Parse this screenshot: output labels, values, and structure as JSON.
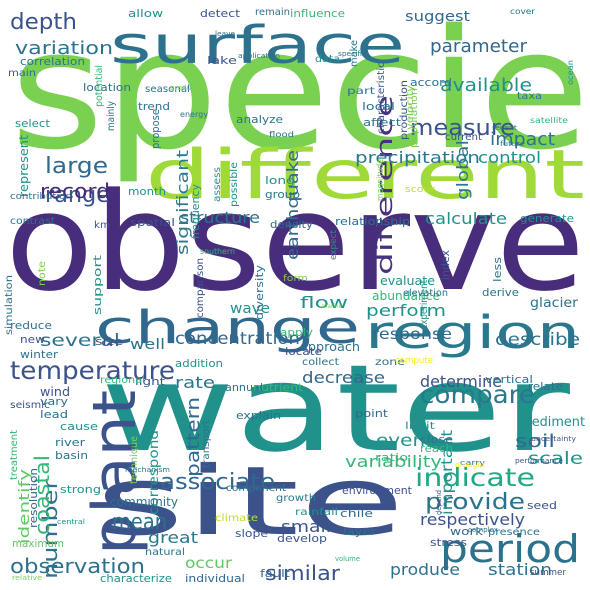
{
  "words": [
    {
      "text": "specie",
      "color": "#7ad151"
    },
    {
      "text": "observe",
      "color": "#472d7b"
    },
    {
      "text": "water",
      "color": "#21918c"
    },
    {
      "text": "site",
      "color": "#3b528b"
    },
    {
      "text": "different",
      "color": "#a0da39"
    },
    {
      "text": "surface",
      "color": "#2c728e"
    },
    {
      "text": "change",
      "color": "#31688e"
    },
    {
      "text": "region",
      "color": "#2a788e"
    },
    {
      "text": "plant",
      "color": "#3b528b"
    },
    {
      "text": "period",
      "color": "#2c728e"
    },
    {
      "text": "temperature",
      "color": "#3b528b"
    },
    {
      "text": "indicate",
      "color": "#22a884"
    },
    {
      "text": "compare",
      "color": "#2a788e"
    },
    {
      "text": "difference",
      "color": "#46327e"
    },
    {
      "text": "measure",
      "color": "#3b528b"
    },
    {
      "text": "associate",
      "color": "#31688e"
    },
    {
      "text": "provide",
      "color": "#2c728e"
    },
    {
      "text": "observation",
      "color": "#2c728e"
    },
    {
      "text": "large",
      "color": "#31688e"
    },
    {
      "text": "number",
      "color": "#2c728e"
    },
    {
      "text": "range",
      "color": "#3b528b"
    },
    {
      "text": "depth",
      "color": "#3b528b"
    },
    {
      "text": "parameter",
      "color": "#31688e"
    },
    {
      "text": "pattern",
      "color": "#31688e"
    },
    {
      "text": "precipitation",
      "color": "#2a788e"
    },
    {
      "text": "concentration",
      "color": "#31688e"
    },
    {
      "text": "mean",
      "color": "#2c728e"
    },
    {
      "text": "similar",
      "color": "#3b528b"
    },
    {
      "text": "significant",
      "color": "#2a788e"
    },
    {
      "text": "soil",
      "color": "#31688e"
    },
    {
      "text": "structure",
      "color": "#2c728e"
    },
    {
      "text": "calculate",
      "color": "#21918c"
    },
    {
      "text": "scale",
      "color": "#21918c"
    },
    {
      "text": "variation",
      "color": "#2c728e"
    },
    {
      "text": "coastal",
      "color": "#35b779"
    },
    {
      "text": "available",
      "color": "#21918c"
    },
    {
      "text": "impact",
      "color": "#2c728e"
    },
    {
      "text": "record",
      "color": "#482878"
    },
    {
      "text": "earthquake",
      "color": "#31688e"
    },
    {
      "text": "global",
      "color": "#2a788e"
    },
    {
      "text": "variability",
      "color": "#35b779"
    },
    {
      "text": "describe",
      "color": "#2c728e"
    },
    {
      "text": "flow",
      "color": "#21918c"
    },
    {
      "text": "rate",
      "color": "#2c728e"
    },
    {
      "text": "several",
      "color": "#2c728e"
    },
    {
      "text": "event",
      "color": "#21918c"
    },
    {
      "text": "respectively",
      "color": "#3b528b"
    },
    {
      "text": "determine",
      "color": "#3b528b"
    },
    {
      "text": "decrease",
      "color": "#31688e"
    },
    {
      "text": "perform",
      "color": "#21918c"
    },
    {
      "text": "control",
      "color": "#21918c"
    },
    {
      "text": "response",
      "color": "#31688e"
    },
    {
      "text": "great",
      "color": "#2a788e"
    },
    {
      "text": "small",
      "color": "#3b528b"
    },
    {
      "text": "station",
      "color": "#2c728e"
    },
    {
      "text": "produce",
      "color": "#2c728e"
    },
    {
      "text": "well",
      "color": "#2c728e"
    },
    {
      "text": "important",
      "color": "#21918c"
    },
    {
      "text": "wave",
      "color": "#21918c"
    },
    {
      "text": "occur",
      "color": "#5ec962"
    },
    {
      "text": "suggest",
      "color": "#31688e"
    },
    {
      "text": "identify",
      "color": "#5ec962"
    },
    {
      "text": "sediment",
      "color": "#21918c"
    },
    {
      "text": "abundance",
      "color": "#35b779"
    },
    {
      "text": "glacier",
      "color": "#2c728e"
    },
    {
      "text": "evaluate",
      "color": "#21918c"
    },
    {
      "text": "approach",
      "color": "#2c728e"
    },
    {
      "text": "represent",
      "color": "#21918c"
    },
    {
      "text": "correspond",
      "color": "#21918c"
    },
    {
      "text": "community",
      "color": "#2c728e"
    },
    {
      "text": "wind",
      "color": "#3b528b"
    },
    {
      "text": "density",
      "color": "#31688e"
    },
    {
      "text": "relationship",
      "color": "#2c728e"
    },
    {
      "text": "spatial",
      "color": "#3b528b"
    },
    {
      "text": "generate",
      "color": "#21918c"
    },
    {
      "text": "accord",
      "color": "#2c728e"
    },
    {
      "text": "local",
      "color": "#2c728e"
    },
    {
      "text": "affect",
      "color": "#2c728e"
    },
    {
      "text": "analyze",
      "color": "#2c728e"
    },
    {
      "text": "lake",
      "color": "#3b528b"
    },
    {
      "text": "trend",
      "color": "#2c728e"
    },
    {
      "text": "month",
      "color": "#21918c"
    },
    {
      "text": "strong",
      "color": "#21918c"
    },
    {
      "text": "develop",
      "color": "#3b528b"
    },
    {
      "text": "layer",
      "color": "#2c728e"
    },
    {
      "text": "chile",
      "color": "#31688e"
    },
    {
      "text": "slope",
      "color": "#3b528b"
    },
    {
      "text": "size",
      "color": "#3b528b"
    },
    {
      "text": "annual",
      "color": "#2c728e"
    },
    {
      "text": "nutrient",
      "color": "#35b779"
    },
    {
      "text": "point",
      "color": "#31688e"
    },
    {
      "text": "reach",
      "color": "#35b779"
    },
    {
      "text": "cause",
      "color": "#21918c"
    },
    {
      "text": "explain",
      "color": "#2c728e"
    },
    {
      "text": "ratio",
      "color": "#35b779"
    },
    {
      "text": "close",
      "color": "#2c728e"
    },
    {
      "text": "river",
      "color": "#2c728e"
    },
    {
      "text": "basin",
      "color": "#2c728e"
    },
    {
      "text": "maximum",
      "color": "#5ec962"
    },
    {
      "text": "resolution",
      "color": "#31688e"
    },
    {
      "text": "work",
      "color": "#31688e"
    },
    {
      "text": "seed",
      "color": "#3b528b"
    },
    {
      "text": "environment",
      "color": "#3b528b"
    },
    {
      "text": "stress",
      "color": "#3b528b"
    },
    {
      "text": "fault",
      "color": "#31688e"
    },
    {
      "text": "individual",
      "color": "#31688e"
    },
    {
      "text": "characterize",
      "color": "#21918c"
    },
    {
      "text": "summer",
      "color": "#3b528b"
    },
    {
      "text": "natural",
      "color": "#2c728e"
    },
    {
      "text": "climate",
      "color": "#bddf26"
    },
    {
      "text": "growth",
      "color": "#2a788e"
    },
    {
      "text": "component",
      "color": "#2c728e"
    },
    {
      "text": "rainfall",
      "color": "#21918c"
    },
    {
      "text": "presence",
      "color": "#2c728e"
    },
    {
      "text": "relate",
      "color": "#2c728e"
    },
    {
      "text": "limit",
      "color": "#21918c"
    },
    {
      "text": "vertical",
      "color": "#2c728e"
    },
    {
      "text": "zone",
      "color": "#2c728e"
    },
    {
      "text": "locate",
      "color": "#3b528b"
    },
    {
      "text": "collect",
      "color": "#2c728e"
    },
    {
      "text": "addition",
      "color": "#21918c"
    },
    {
      "text": "light",
      "color": "#3b528b"
    },
    {
      "text": "apply",
      "color": "#35b779"
    },
    {
      "text": "reduce",
      "color": "#2c728e"
    },
    {
      "text": "new",
      "color": "#3b528b"
    },
    {
      "text": "winter",
      "color": "#2c728e"
    },
    {
      "text": "lead",
      "color": "#2c728e"
    },
    {
      "text": "vary",
      "color": "#2c728e"
    },
    {
      "text": "regional",
      "color": "#35b779"
    },
    {
      "text": "seismic",
      "color": "#3b528b"
    },
    {
      "text": "simulation",
      "color": "#2c728e"
    },
    {
      "text": "support",
      "color": "#21918c"
    },
    {
      "text": "comparison",
      "color": "#3b528b"
    },
    {
      "text": "diversity",
      "color": "#2c728e"
    },
    {
      "text": "note",
      "color": "#7ad151"
    },
    {
      "text": "km",
      "color": "#3b528b"
    },
    {
      "text": "contribution",
      "color": "#2c728e"
    },
    {
      "text": "contrast",
      "color": "#2c728e"
    },
    {
      "text": "frequency",
      "color": "#21918c"
    },
    {
      "text": "assess",
      "color": "#21918c"
    },
    {
      "text": "possible",
      "color": "#21918c"
    },
    {
      "text": "long",
      "color": "#21918c"
    },
    {
      "text": "group",
      "color": "#2c728e"
    },
    {
      "text": "propose",
      "color": "#2c728e"
    },
    {
      "text": "select",
      "color": "#21918c"
    },
    {
      "text": "location",
      "color": "#2c728e"
    },
    {
      "text": "correlation",
      "color": "#2c728e"
    },
    {
      "text": "main",
      "color": "#31688e"
    },
    {
      "text": "seasonal",
      "color": "#2c728e"
    },
    {
      "text": "mainly",
      "color": "#2c728e"
    },
    {
      "text": "potential",
      "color": "#35b779"
    },
    {
      "text": "energy",
      "color": "#2c728e"
    },
    {
      "text": "product",
      "color": "#7ad151"
    },
    {
      "text": "part",
      "color": "#2c728e"
    },
    {
      "text": "data",
      "color": "#21918c"
    },
    {
      "text": "make",
      "color": "#2c728e"
    },
    {
      "text": "allow",
      "color": "#21918c"
    },
    {
      "text": "detect",
      "color": "#3b528b"
    },
    {
      "text": "remain",
      "color": "#2c728e"
    },
    {
      "text": "influence",
      "color": "#35b779"
    },
    {
      "text": "leave",
      "color": "#2c728e"
    },
    {
      "text": "application",
      "color": "#2c728e"
    },
    {
      "text": "specific",
      "color": "#2c728e"
    },
    {
      "text": "characteristic",
      "color": "#3b528b"
    },
    {
      "text": "production",
      "color": "#3b528b"
    },
    {
      "text": "population",
      "color": "#7ad151"
    },
    {
      "text": "velocity",
      "color": "#7ad151"
    },
    {
      "text": "taxa",
      "color": "#2c728e"
    },
    {
      "text": "satellite",
      "color": "#35b779"
    },
    {
      "text": "cover",
      "color": "#2c728e"
    },
    {
      "text": "ocean",
      "color": "#21918c"
    },
    {
      "text": "recent",
      "color": "#2c728e"
    },
    {
      "text": "future",
      "color": "#2c728e"
    },
    {
      "text": "current",
      "color": "#3b528b"
    },
    {
      "text": "flood",
      "color": "#2c728e"
    },
    {
      "text": "magnitude",
      "color": "#7ad151"
    },
    {
      "text": "scour",
      "color": "#bddf26"
    },
    {
      "text": "index",
      "color": "#3b528b"
    },
    {
      "text": "less",
      "color": "#2c728e"
    },
    {
      "text": "expect",
      "color": "#21918c"
    },
    {
      "text": "elevation",
      "color": "#2c728e"
    },
    {
      "text": "experiment",
      "color": "#21918c"
    },
    {
      "text": "form",
      "color": "#7ad151"
    },
    {
      "text": "derive",
      "color": "#2c728e"
    },
    {
      "text": "southern",
      "color": "#35b779"
    },
    {
      "text": "marine",
      "color": "#7ad151"
    },
    {
      "text": "compute",
      "color": "#fde725"
    },
    {
      "text": "transport",
      "color": "#2c728e"
    },
    {
      "text": "technique",
      "color": "#7ad151"
    },
    {
      "text": "treatment",
      "color": "#35b779"
    },
    {
      "text": "mechanism",
      "color": "#2c728e"
    },
    {
      "text": "carry",
      "color": "#2c728e"
    },
    {
      "text": "uncertainty",
      "color": "#3b528b"
    },
    {
      "text": "performance",
      "color": "#3b528b"
    },
    {
      "text": "drought",
      "color": "#fde725"
    },
    {
      "text": "depend",
      "color": "#3b528b"
    },
    {
      "text": "complex",
      "color": "#2c728e"
    },
    {
      "text": "central",
      "color": "#21918c"
    },
    {
      "text": "relative",
      "color": "#7ad151"
    },
    {
      "text": "volume",
      "color": "#35b779"
    }
  ]
}
